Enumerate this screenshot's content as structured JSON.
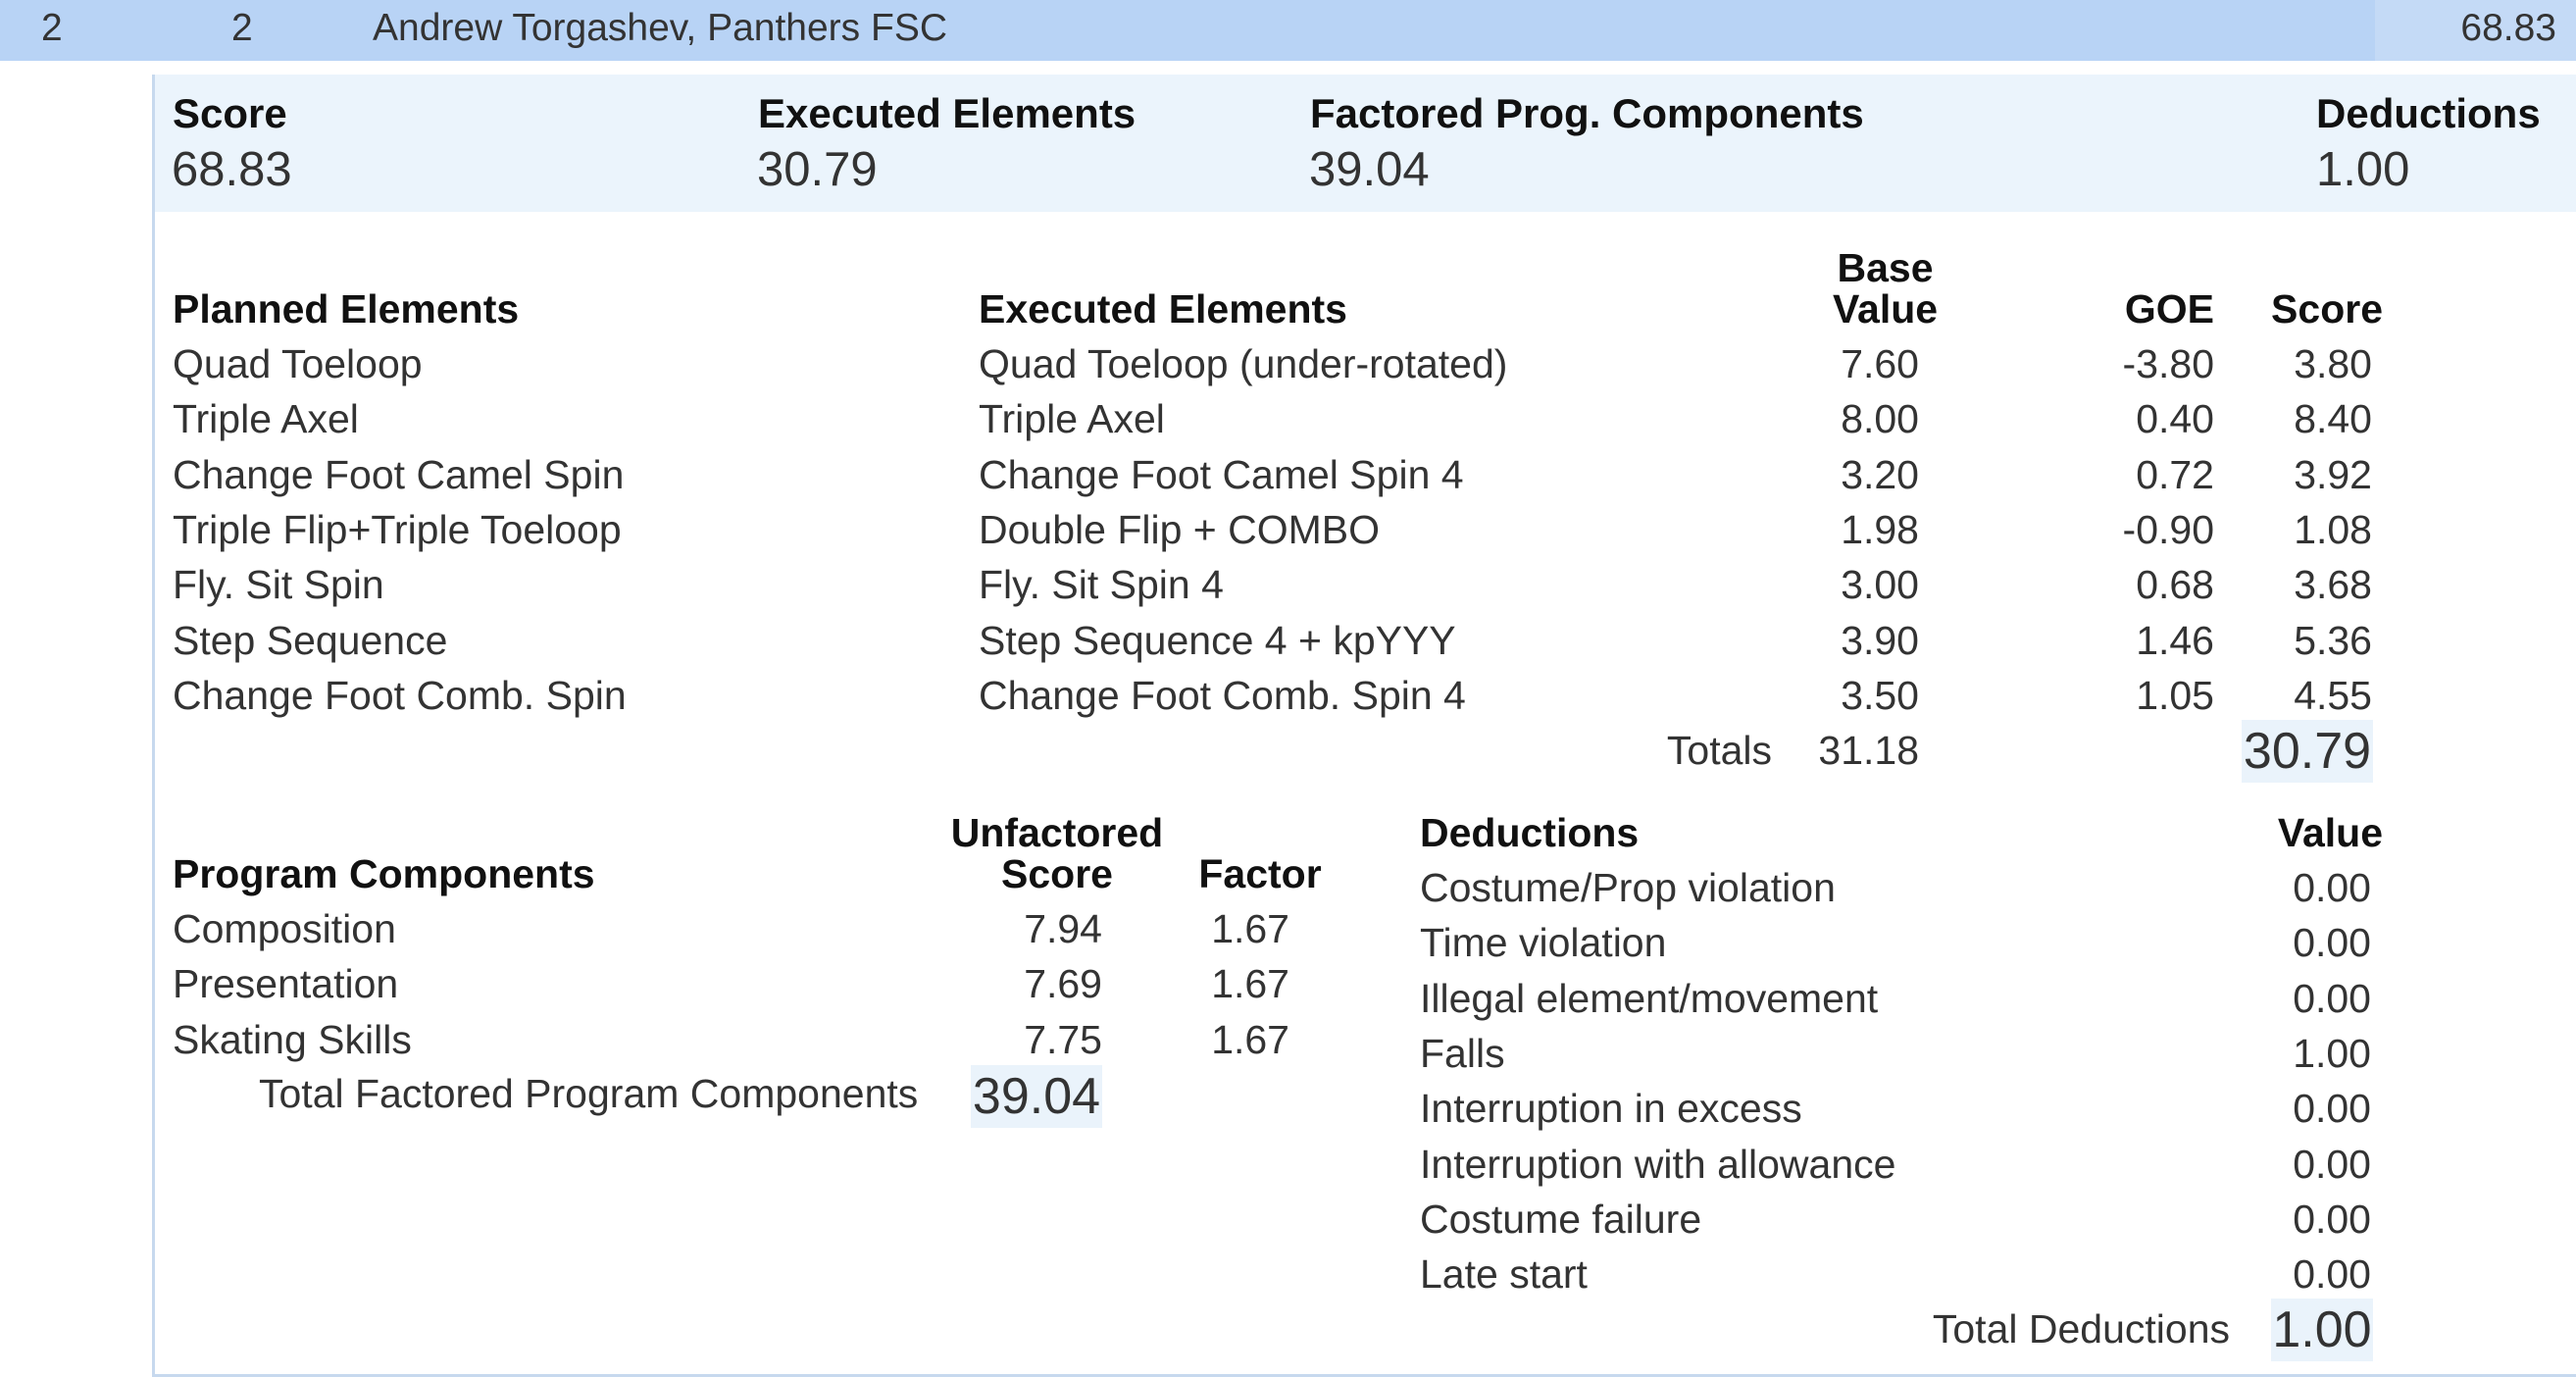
{
  "header": {
    "rank": "2",
    "start_number": "2",
    "skater": "Andrew Torgashev, Panthers FSC",
    "total": "68.83"
  },
  "summary": {
    "score_label": "Score",
    "score_value": "68.83",
    "executed_label": "Executed Elements",
    "executed_value": "30.79",
    "factored_label": "Factored Prog. Components",
    "factored_value": "39.04",
    "deductions_label": "Deductions",
    "deductions_value": "1.00"
  },
  "elements": {
    "planned_header": "Planned Elements",
    "executed_header": "Executed Elements",
    "base_header_line1": "Base",
    "base_header_line2": "Value",
    "goe_header": "GOE",
    "score_header": "Score",
    "rows": [
      {
        "planned": "Quad Toeloop",
        "executed": "Quad Toeloop (under-rotated)",
        "base": "7.60",
        "goe": "-3.80",
        "score": "3.80"
      },
      {
        "planned": "Triple Axel",
        "executed": "Triple Axel",
        "base": "8.00",
        "goe": "0.40",
        "score": "8.40"
      },
      {
        "planned": "Change Foot Camel Spin",
        "executed": "Change Foot Camel Spin 4",
        "base": "3.20",
        "goe": "0.72",
        "score": "3.92"
      },
      {
        "planned": "Triple Flip+Triple Toeloop",
        "executed": "Double Flip + COMBO",
        "base": "1.98",
        "goe": "-0.90",
        "score": "1.08"
      },
      {
        "planned": "Fly. Sit Spin",
        "executed": "Fly. Sit Spin 4",
        "base": "3.00",
        "goe": "0.68",
        "score": "3.68"
      },
      {
        "planned": "Step Sequence",
        "executed": "Step Sequence 4 + kpYYY",
        "base": "3.90",
        "goe": "1.46",
        "score": "5.36"
      },
      {
        "planned": "Change Foot Comb. Spin",
        "executed": "Change Foot Comb. Spin 4",
        "base": "3.50",
        "goe": "1.05",
        "score": "4.55"
      }
    ],
    "totals_label": "Totals",
    "totals_base": "31.18",
    "totals_score": "30.79"
  },
  "components": {
    "header": "Program Components",
    "unfactored_line1": "Unfactored",
    "unfactored_line2": "Score",
    "factor_header": "Factor",
    "rows": [
      {
        "name": "Composition",
        "score": "7.94",
        "factor": "1.67"
      },
      {
        "name": "Presentation",
        "score": "7.69",
        "factor": "1.67"
      },
      {
        "name": "Skating Skills",
        "score": "7.75",
        "factor": "1.67"
      }
    ],
    "total_label": "Total Factored Program Components",
    "total_value": "39.04"
  },
  "deductions": {
    "header": "Deductions",
    "value_header": "Value",
    "rows": [
      {
        "name": "Costume/Prop violation",
        "value": "0.00"
      },
      {
        "name": "Time violation",
        "value": "0.00"
      },
      {
        "name": "Illegal element/movement",
        "value": "0.00"
      },
      {
        "name": "Falls",
        "value": "1.00"
      },
      {
        "name": "Interruption in excess",
        "value": "0.00"
      },
      {
        "name": "Interruption with allowance",
        "value": "0.00"
      },
      {
        "name": "Costume failure",
        "value": "0.00"
      },
      {
        "name": "Late start",
        "value": "0.00"
      }
    ],
    "total_label": "Total Deductions",
    "total_value": "1.00"
  }
}
